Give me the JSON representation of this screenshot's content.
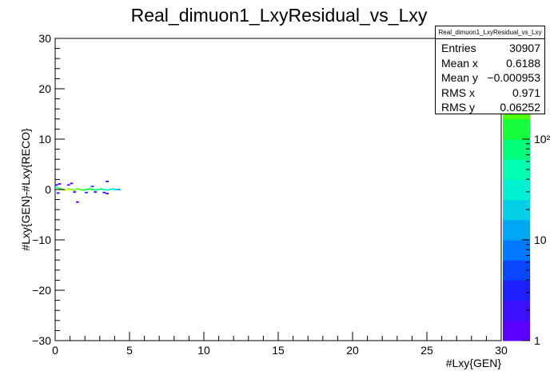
{
  "chart_data": {
    "type": "heatmap",
    "title": "Real_dimuon1_LxyResidual_vs_Lxy",
    "xlabel": "#Lxy{GEN}",
    "ylabel": "#Lxy{GEN}-#Lxy{RECO}",
    "xlim": [
      0,
      30
    ],
    "ylim": [
      -30,
      30
    ],
    "x_ticks": [
      "0",
      "5",
      "10",
      "15",
      "20",
      "25",
      "30"
    ],
    "y_ticks": [
      "−30",
      "−20",
      "−10",
      "0",
      "10",
      "20",
      "30"
    ],
    "z_scale": "log",
    "z_range": [
      1,
      1000
    ],
    "z_ticks": [
      "1",
      "10",
      "10²"
    ],
    "grid": false,
    "cells": [
      {
        "x": 0.1,
        "y": 0.4,
        "z": 60
      },
      {
        "x": 0.3,
        "y": 0.2,
        "z": 150
      },
      {
        "x": 0.5,
        "y": 0.0,
        "z": 300
      },
      {
        "x": 0.7,
        "y": -0.1,
        "z": 400
      },
      {
        "x": 0.9,
        "y": 0.1,
        "z": 350
      },
      {
        "x": 1.1,
        "y": 0.0,
        "z": 300
      },
      {
        "x": 1.3,
        "y": -0.1,
        "z": 250
      },
      {
        "x": 1.5,
        "y": 0.1,
        "z": 200
      },
      {
        "x": 1.7,
        "y": 0.0,
        "z": 180
      },
      {
        "x": 1.9,
        "y": -0.1,
        "z": 150
      },
      {
        "x": 2.1,
        "y": 0.0,
        "z": 130
      },
      {
        "x": 2.3,
        "y": 0.1,
        "z": 110
      },
      {
        "x": 2.5,
        "y": 0.0,
        "z": 100
      },
      {
        "x": 2.7,
        "y": -0.1,
        "z": 90
      },
      {
        "x": 2.9,
        "y": 0.0,
        "z": 80
      },
      {
        "x": 3.1,
        "y": 0.1,
        "z": 70
      },
      {
        "x": 3.3,
        "y": 0.0,
        "z": 60
      },
      {
        "x": 3.5,
        "y": -0.1,
        "z": 50
      },
      {
        "x": 3.7,
        "y": 0.0,
        "z": 40
      },
      {
        "x": 3.9,
        "y": 0.1,
        "z": 30
      },
      {
        "x": 4.1,
        "y": 0.0,
        "z": 20
      },
      {
        "x": 4.3,
        "y": 0.0,
        "z": 10
      },
      {
        "x": 0.1,
        "y": 0.9,
        "z": 2
      },
      {
        "x": 0.3,
        "y": 1.1,
        "z": 1
      },
      {
        "x": 0.2,
        "y": -0.7,
        "z": 3
      },
      {
        "x": 0.9,
        "y": 0.9,
        "z": 1
      },
      {
        "x": 1.1,
        "y": 1.2,
        "z": 1
      },
      {
        "x": 1.5,
        "y": -2.5,
        "z": 1
      },
      {
        "x": 2.1,
        "y": -0.6,
        "z": 3
      },
      {
        "x": 2.7,
        "y": -0.5,
        "z": 2
      },
      {
        "x": 3.3,
        "y": -0.6,
        "z": 2
      },
      {
        "x": 3.5,
        "y": 1.6,
        "z": 1
      },
      {
        "x": 3.5,
        "y": -0.8,
        "z": 1
      },
      {
        "x": 1.3,
        "y": -0.5,
        "z": 2
      },
      {
        "x": 2.5,
        "y": 0.6,
        "z": 4
      }
    ],
    "stats": {
      "title": "Real_dimuon1_LxyResidual_vs_Lxy",
      "rows": [
        {
          "label": "Entries",
          "value": "30907"
        },
        {
          "label": "Mean x",
          "value": "0.6188"
        },
        {
          "label": "Mean y",
          "value": "−0.000953"
        },
        {
          "label": "RMS x",
          "value": "0.971"
        },
        {
          "label": "RMS y",
          "value": "0.06252"
        }
      ]
    },
    "palette": [
      "#5a00ff",
      "#3c10ff",
      "#1e1eff",
      "#0a46ff",
      "#0078ff",
      "#00a6f2",
      "#00cfe6",
      "#00f0d2",
      "#00ffb0",
      "#00ff7a",
      "#14ff3c",
      "#50ff14",
      "#96ff00",
      "#d4ff00",
      "#f7ff00"
    ]
  }
}
